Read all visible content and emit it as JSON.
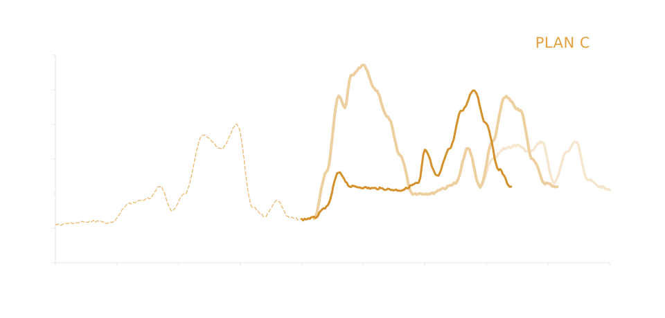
{
  "legend": {
    "label": "PLAN C"
  },
  "colors": {
    "accent": "#E3A03D",
    "series_main": "#D4902A",
    "series_faded": "#EDCFA0",
    "series_faint": "#F6E6CE",
    "axis": "#E5E5E5"
  },
  "chart_data": {
    "type": "line",
    "xlim": [
      0,
      9
    ],
    "ylim": [
      0,
      6
    ],
    "grid": false,
    "legend_placement": "top-right",
    "series": [
      {
        "name": "PLAN C",
        "style": "main",
        "x": [
          0,
          0.3,
          0.6,
          0.9,
          1.2,
          1.5,
          1.7,
          1.9,
          2.1,
          2.4,
          2.7,
          2.95,
          3.2,
          3.4,
          3.6,
          3.8,
          4.0,
          4.2,
          4.4,
          4.6,
          4.8,
          5.2,
          5.6,
          5.9,
          6.0,
          6.2,
          6.4,
          6.6,
          6.8,
          7.0,
          7.2,
          7.4
        ],
        "y": [
          1.1,
          1.15,
          1.2,
          1.15,
          1.7,
          1.85,
          2.2,
          1.5,
          2.0,
          3.7,
          3.3,
          4.0,
          1.6,
          1.35,
          1.8,
          1.3,
          1.25,
          1.3,
          1.6,
          2.6,
          2.2,
          2.15,
          2.1,
          2.3,
          3.25,
          2.5,
          3.3,
          4.4,
          5.0,
          4.0,
          2.7,
          2.2
        ]
      },
      {
        "name": "",
        "style": "faded",
        "x": [
          4.2,
          4.4,
          4.6,
          4.7,
          4.8,
          5.0,
          5.2,
          5.4,
          5.6,
          5.8,
          5.95,
          6.1,
          6.3,
          6.5,
          6.7,
          6.9,
          7.1,
          7.3,
          7.55,
          7.75,
          7.95,
          8.15
        ],
        "y": [
          1.3,
          2.6,
          4.8,
          4.5,
          5.4,
          5.7,
          5.0,
          4.2,
          3.1,
          2.0,
          2.0,
          2.0,
          2.15,
          2.3,
          3.3,
          2.2,
          3.5,
          4.8,
          4.4,
          3.0,
          2.3,
          2.2
        ]
      },
      {
        "name": "",
        "style": "faint",
        "x": [
          6.9,
          7.1,
          7.3,
          7.5,
          7.7,
          7.9,
          8.1,
          8.3,
          8.45,
          8.65,
          8.85,
          9.0
        ],
        "y": [
          2.2,
          3.0,
          3.3,
          3.4,
          3.2,
          3.5,
          2.3,
          3.2,
          3.5,
          2.4,
          2.2,
          2.1
        ]
      }
    ]
  }
}
